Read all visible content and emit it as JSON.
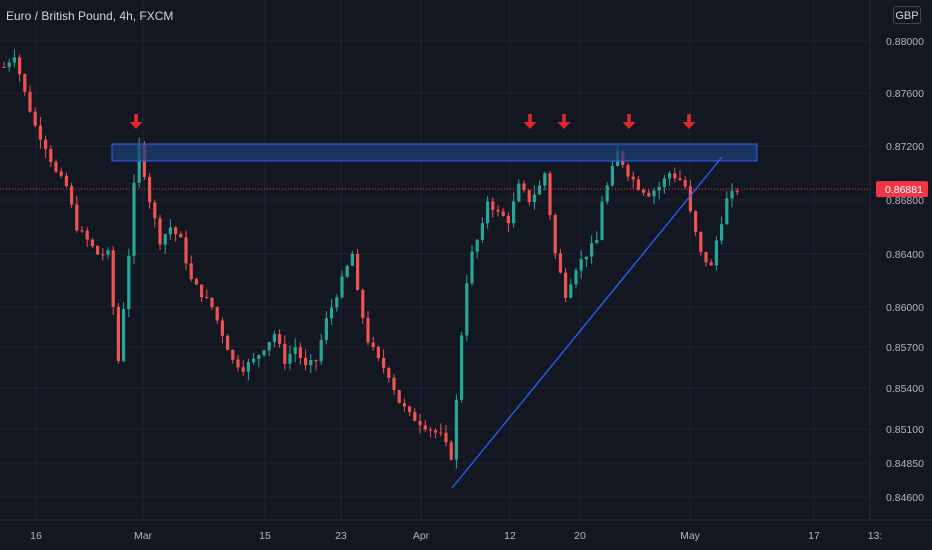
{
  "header": {
    "title": "Euro / British Pound, 4h, FXCM",
    "currency_button": "GBP"
  },
  "colors": {
    "background": "#131722",
    "grid": "#1f2330",
    "text": "#b2b5be",
    "up": "#26a69a",
    "down": "#ef5350",
    "trendline": "#2962ff",
    "zone_fill": "#1e3f77",
    "zone_border": "#2962ff",
    "arrow": "#e0292e",
    "price_label": "#f23645"
  },
  "chart_data": {
    "type": "candlestick",
    "symbol": "EURGBP",
    "timeframe": "4h",
    "source": "FXCM",
    "yaxis": {
      "ticks": [
        "0.88000",
        "0.87600",
        "0.87200",
        "0.86800",
        "0.86400",
        "0.86000",
        "0.85700",
        "0.85400",
        "0.85100",
        "0.84850",
        "0.84600"
      ]
    },
    "xaxis": {
      "ticks": [
        "16",
        "Mar",
        "15",
        "23",
        "Apr",
        "12",
        "20",
        "May",
        "17",
        "13:"
      ]
    },
    "current_price": {
      "value": 0.86881,
      "label": "0.86881"
    },
    "price_path": [
      [
        0,
        0.878
      ],
      [
        2,
        0.879
      ],
      [
        4,
        0.876
      ],
      [
        6,
        0.8735
      ],
      [
        8,
        0.872
      ],
      [
        10,
        0.87
      ],
      [
        12,
        0.869
      ],
      [
        14,
        0.866
      ],
      [
        16,
        0.865
      ],
      [
        18,
        0.864
      ],
      [
        20,
        0.864
      ],
      [
        21,
        0.86
      ],
      [
        22,
        0.856
      ],
      [
        23,
        0.86
      ],
      [
        24,
        0.864
      ],
      [
        25,
        0.869
      ],
      [
        26,
        0.872
      ],
      [
        27,
        0.87
      ],
      [
        28,
        0.868
      ],
      [
        30,
        0.865
      ],
      [
        32,
        0.866
      ],
      [
        34,
        0.865
      ],
      [
        36,
        0.862
      ],
      [
        38,
        0.861
      ],
      [
        40,
        0.86
      ],
      [
        42,
        0.858
      ],
      [
        44,
        0.856
      ],
      [
        46,
        0.8555
      ],
      [
        48,
        0.856
      ],
      [
        50,
        0.857
      ],
      [
        52,
        0.858
      ],
      [
        54,
        0.856
      ],
      [
        56,
        0.857
      ],
      [
        58,
        0.8555
      ],
      [
        60,
        0.856
      ],
      [
        62,
        0.859
      ],
      [
        64,
        0.861
      ],
      [
        66,
        0.863
      ],
      [
        67,
        0.864
      ],
      [
        68,
        0.861
      ],
      [
        70,
        0.8575
      ],
      [
        72,
        0.856
      ],
      [
        74,
        0.855
      ],
      [
        76,
        0.853
      ],
      [
        78,
        0.852
      ],
      [
        80,
        0.8515
      ],
      [
        82,
        0.851
      ],
      [
        84,
        0.8505
      ],
      [
        86,
        0.849
      ],
      [
        87,
        0.853
      ],
      [
        88,
        0.858
      ],
      [
        89,
        0.862
      ],
      [
        90,
        0.864
      ],
      [
        92,
        0.866
      ],
      [
        93,
        0.868
      ],
      [
        95,
        0.867
      ],
      [
        97,
        0.8665
      ],
      [
        99,
        0.869
      ],
      [
        101,
        0.868
      ],
      [
        103,
        0.869
      ],
      [
        104,
        0.87
      ],
      [
        106,
        0.864
      ],
      [
        108,
        0.861
      ],
      [
        110,
        0.863
      ],
      [
        112,
        0.864
      ],
      [
        114,
        0.865
      ],
      [
        115,
        0.868
      ],
      [
        116,
        0.869
      ],
      [
        118,
        0.8715
      ],
      [
        120,
        0.87
      ],
      [
        122,
        0.869
      ],
      [
        124,
        0.8685
      ],
      [
        126,
        0.869
      ],
      [
        128,
        0.87
      ],
      [
        130,
        0.8695
      ],
      [
        131,
        0.869
      ],
      [
        132,
        0.867
      ],
      [
        134,
        0.864
      ],
      [
        136,
        0.863
      ],
      [
        137,
        0.865
      ],
      [
        139,
        0.868
      ],
      [
        141,
        0.8688
      ]
    ]
  }
}
